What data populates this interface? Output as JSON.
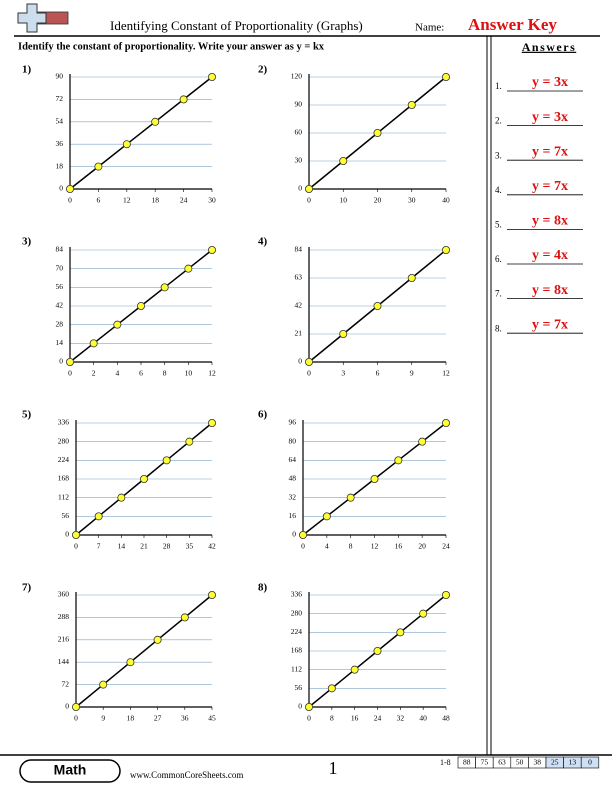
{
  "header": {
    "title": "Identifying Constant of Proportionality (Graphs)",
    "name_label": "Name:",
    "answer_key": "Answer Key"
  },
  "instruction": "Identify the constant of proportionality. Write your answer as y = kx",
  "chart_data": [
    {
      "type": "line",
      "label": "1)",
      "x": [
        0,
        6,
        12,
        18,
        24,
        30
      ],
      "y": [
        0,
        18,
        36,
        54,
        72,
        90
      ],
      "xlim": [
        0,
        30
      ],
      "ylim": [
        0,
        90
      ],
      "xticks": [
        0,
        6,
        12,
        18,
        24,
        30
      ],
      "yticks": [
        0,
        18,
        36,
        54,
        72,
        90
      ]
    },
    {
      "type": "line",
      "label": "2)",
      "x": [
        0,
        10,
        20,
        30,
        40
      ],
      "y": [
        0,
        30,
        60,
        90,
        120
      ],
      "xlim": [
        0,
        40
      ],
      "ylim": [
        0,
        120
      ],
      "xticks": [
        0,
        10,
        20,
        30,
        40
      ],
      "yticks": [
        0,
        30,
        60,
        90,
        120
      ]
    },
    {
      "type": "line",
      "label": "3)",
      "x": [
        0,
        2,
        4,
        6,
        8,
        10,
        12
      ],
      "y": [
        0,
        14,
        28,
        42,
        56,
        70,
        84
      ],
      "xlim": [
        0,
        12
      ],
      "ylim": [
        0,
        84
      ],
      "xticks": [
        0,
        2,
        4,
        6,
        8,
        10,
        12
      ],
      "yticks": [
        0,
        14,
        28,
        42,
        56,
        70,
        84
      ]
    },
    {
      "type": "line",
      "label": "4)",
      "x": [
        0,
        3,
        6,
        9,
        12
      ],
      "y": [
        0,
        21,
        42,
        63,
        84
      ],
      "xlim": [
        0,
        12
      ],
      "ylim": [
        0,
        84
      ],
      "xticks": [
        0,
        3,
        6,
        9,
        12
      ],
      "yticks": [
        0,
        21,
        42,
        63,
        84
      ]
    },
    {
      "type": "line",
      "label": "5)",
      "x": [
        0,
        7,
        14,
        21,
        28,
        35,
        42
      ],
      "y": [
        0,
        56,
        112,
        168,
        224,
        280,
        336
      ],
      "xlim": [
        0,
        42
      ],
      "ylim": [
        0,
        336
      ],
      "xticks": [
        0,
        7,
        14,
        21,
        28,
        35,
        42
      ],
      "yticks": [
        0,
        56,
        112,
        168,
        224,
        280,
        336
      ]
    },
    {
      "type": "line",
      "label": "6)",
      "x": [
        0,
        4,
        8,
        12,
        16,
        20,
        24
      ],
      "y": [
        0,
        16,
        32,
        48,
        64,
        80,
        96
      ],
      "xlim": [
        0,
        24
      ],
      "ylim": [
        0,
        96
      ],
      "xticks": [
        0,
        4,
        8,
        12,
        16,
        20,
        24
      ],
      "yticks": [
        0,
        16,
        32,
        48,
        64,
        80,
        96
      ]
    },
    {
      "type": "line",
      "label": "7)",
      "x": [
        0,
        9,
        18,
        27,
        36,
        45
      ],
      "y": [
        0,
        72,
        144,
        216,
        288,
        360
      ],
      "xlim": [
        0,
        45
      ],
      "ylim": [
        0,
        360
      ],
      "xticks": [
        0,
        9,
        18,
        27,
        36,
        45
      ],
      "yticks": [
        0,
        72,
        144,
        216,
        288,
        360
      ]
    },
    {
      "type": "line",
      "label": "8)",
      "x": [
        0,
        8,
        16,
        24,
        32,
        40,
        48
      ],
      "y": [
        0,
        56,
        112,
        168,
        224,
        280,
        336
      ],
      "xlim": [
        0,
        48
      ],
      "ylim": [
        0,
        336
      ],
      "xticks": [
        0,
        8,
        16,
        24,
        32,
        40,
        48
      ],
      "yticks": [
        0,
        56,
        112,
        168,
        224,
        280,
        336
      ]
    }
  ],
  "answers": {
    "title": "Answers",
    "items": [
      {
        "num": "1.",
        "answer": "y = 3x"
      },
      {
        "num": "2.",
        "answer": "y = 3x"
      },
      {
        "num": "3.",
        "answer": "y = 7x"
      },
      {
        "num": "4.",
        "answer": "y = 7x"
      },
      {
        "num": "5.",
        "answer": "y = 8x"
      },
      {
        "num": "6.",
        "answer": "y = 4x"
      },
      {
        "num": "7.",
        "answer": "y = 8x"
      },
      {
        "num": "8.",
        "answer": "y = 7x"
      }
    ]
  },
  "footer": {
    "brand": "Math",
    "url": "www.CommonCoreSheets.com",
    "page": "1",
    "range": "1-8",
    "scores": [
      88,
      75,
      63,
      50,
      38,
      25,
      13,
      0
    ]
  }
}
